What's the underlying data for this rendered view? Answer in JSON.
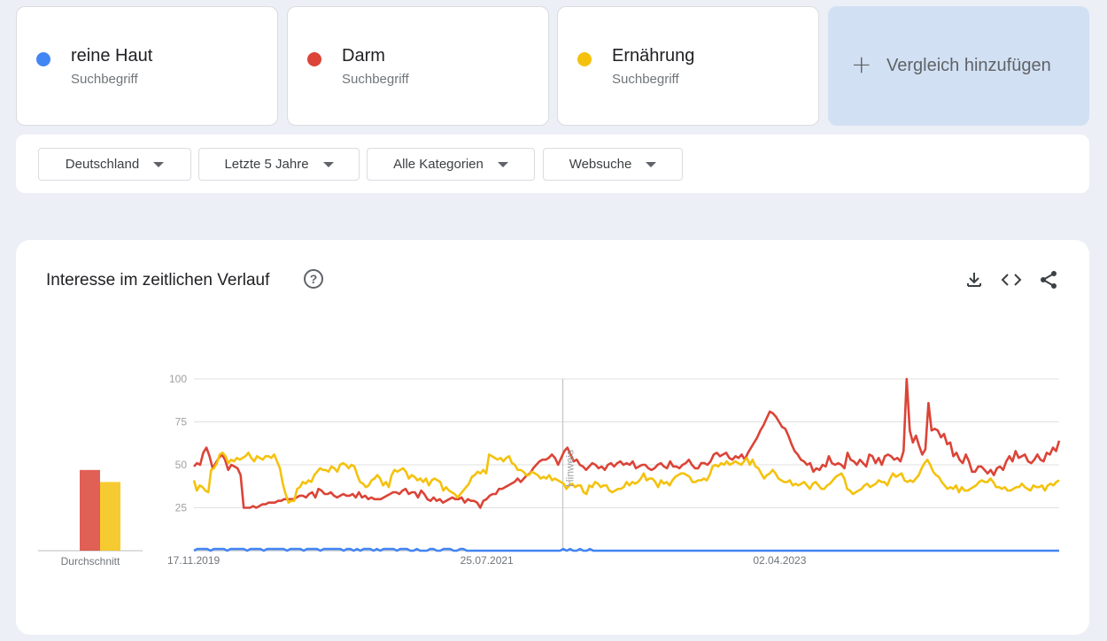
{
  "terms": [
    {
      "label": "reine Haut",
      "sublabel": "Suchbegriff",
      "color": "#4285f4"
    },
    {
      "label": "Darm",
      "sublabel": "Suchbegriff",
      "color": "#db4437"
    },
    {
      "label": "Ernährung",
      "sublabel": "Suchbegriff",
      "color": "#f4c20d"
    }
  ],
  "add_compare": {
    "icon": "plus-icon",
    "label": "Vergleich hinzufügen"
  },
  "filters": {
    "region": "Deutschland",
    "period": "Letzte 5 Jahre",
    "category": "Alle Kategorien",
    "search_type": "Websuche"
  },
  "panel": {
    "title": "Interesse im zeitlichen Verlauf",
    "icons": [
      "help-icon",
      "download-icon",
      "embed-icon",
      "share-icon"
    ]
  },
  "chart_data": {
    "type": "line",
    "y_ticks": [
      25,
      50,
      75,
      100
    ],
    "ylim": [
      0,
      100
    ],
    "x_tick_labels": [
      "17.11.2019",
      "25.07.2021",
      "02.04.2023"
    ],
    "x_range": [
      "17.11.2019",
      "10.11.2024"
    ],
    "annotation": {
      "label": "Hinweis",
      "date": "01.01.2022"
    },
    "average_label": "Durchschnitt",
    "averages": [
      {
        "name": "reine Haut",
        "value": 0
      },
      {
        "name": "Darm",
        "value": 47
      },
      {
        "name": "Ernährung",
        "value": 40
      }
    ],
    "series": [
      {
        "name": "reine Haut",
        "color": "#4285f4",
        "values": [
          0,
          1,
          1,
          1,
          1,
          0,
          1,
          1,
          1,
          1,
          0,
          1,
          1,
          1,
          1,
          1,
          0,
          1,
          1,
          1,
          1,
          0,
          1,
          1,
          1,
          1,
          1,
          1,
          0,
          1,
          1,
          1,
          1,
          0,
          1,
          1,
          1,
          1,
          0,
          1,
          1,
          1,
          1,
          1,
          1,
          0,
          1,
          1,
          0,
          1,
          0,
          1,
          1,
          1,
          0,
          1,
          0,
          1,
          1,
          1,
          1,
          0,
          1,
          1,
          1,
          0,
          0,
          1,
          0,
          0,
          0,
          1,
          1,
          0,
          0,
          1,
          1,
          1,
          0,
          0,
          1,
          1,
          0,
          0,
          0,
          0,
          0,
          0,
          0,
          0,
          0,
          0,
          0,
          0,
          0,
          0,
          0,
          0,
          0,
          0,
          0,
          0,
          0,
          0,
          0,
          0,
          0,
          0,
          0,
          0,
          0,
          1,
          0,
          1,
          0,
          0,
          1,
          0,
          0,
          1,
          0,
          0,
          0,
          0,
          0,
          0,
          0,
          0,
          0,
          0,
          0,
          0,
          0,
          0,
          0,
          0,
          0,
          0,
          0,
          0,
          0,
          0,
          0,
          0,
          0,
          0,
          0,
          0,
          0,
          0,
          0,
          0,
          0,
          0,
          0,
          0,
          0,
          0,
          0,
          0,
          0,
          0,
          0,
          0,
          0,
          0,
          0,
          0,
          0,
          0,
          0,
          0,
          0,
          0,
          0,
          0,
          0,
          0,
          0,
          0,
          0,
          0,
          0,
          0,
          0,
          0,
          0,
          0,
          0,
          0,
          0,
          0,
          0,
          0,
          0,
          0,
          0,
          0,
          0,
          0,
          0,
          0,
          0,
          0,
          0,
          0,
          0,
          0,
          0,
          0,
          0,
          0,
          0,
          0,
          0,
          0,
          0,
          0,
          0,
          0,
          0,
          0,
          0,
          0,
          0,
          0,
          0,
          0,
          0,
          0,
          0,
          0,
          0,
          0,
          0,
          0,
          0,
          0,
          0,
          0,
          0,
          0,
          0,
          0,
          0,
          0,
          0,
          0,
          0,
          0,
          0,
          0,
          0,
          0,
          0,
          0,
          0,
          0,
          0,
          0,
          0
        ]
      },
      {
        "name": "Darm",
        "color": "#db4437",
        "values": [
          49,
          51,
          50,
          57,
          60,
          55,
          48,
          51,
          54,
          56,
          53,
          47,
          50,
          49,
          48,
          44,
          25,
          25,
          25,
          26,
          25,
          26,
          27,
          27,
          28,
          28,
          28,
          29,
          29,
          30,
          30,
          30,
          30,
          31,
          32,
          32,
          31,
          33,
          34,
          31,
          36,
          35,
          33,
          33,
          34,
          32,
          31,
          32,
          33,
          32,
          32,
          33,
          31,
          34,
          31,
          32,
          30,
          31,
          30,
          30,
          30,
          31,
          32,
          33,
          34,
          34,
          33,
          35,
          36,
          33,
          34,
          34,
          31,
          35,
          33,
          30,
          29,
          31,
          29,
          30,
          28,
          29,
          30,
          31,
          30,
          30,
          31,
          28,
          30,
          29,
          29,
          28,
          25,
          29,
          30,
          32,
          33,
          33,
          36,
          36,
          37,
          38,
          39,
          40,
          42,
          40,
          42,
          44,
          45,
          48,
          50,
          52,
          53,
          53,
          54,
          56,
          54,
          50,
          54,
          58,
          60,
          56,
          52,
          53,
          50,
          49,
          47,
          49,
          51,
          50,
          48,
          49,
          47,
          50,
          51,
          49,
          51,
          52,
          50,
          51,
          50,
          52,
          48,
          49,
          50,
          50,
          48,
          47,
          48,
          50,
          51,
          49,
          48,
          52,
          49,
          49,
          48,
          50,
          51,
          53,
          50,
          48,
          48,
          51,
          51,
          50,
          52,
          56,
          57,
          55,
          56,
          57,
          54,
          53,
          55,
          54,
          56,
          53,
          57,
          60,
          63,
          66,
          70,
          73,
          77,
          81,
          80,
          78,
          75,
          72,
          71,
          67,
          62,
          58,
          56,
          53,
          52,
          50,
          51,
          46,
          48,
          47,
          50,
          49,
          55,
          51,
          50,
          51,
          50,
          48,
          57,
          53,
          52,
          50,
          53,
          51,
          49,
          56,
          55,
          51,
          54,
          50,
          55,
          56,
          55,
          53,
          54,
          52,
          58,
          100,
          70,
          63,
          67,
          61,
          56,
          59,
          86,
          70,
          71,
          70,
          66,
          68,
          62,
          63,
          55,
          57,
          53,
          51,
          56,
          52,
          46,
          46,
          49,
          49,
          47,
          45,
          47,
          44,
          48,
          49,
          47,
          52,
          55,
          52,
          58,
          54,
          55,
          56,
          52,
          51,
          53,
          56,
          53,
          52,
          57,
          56,
          60,
          58,
          64
        ]
      },
      {
        "name": "Ernährung",
        "color": "#f4c20d",
        "values": [
          41,
          35,
          38,
          37,
          35,
          34,
          47,
          48,
          51,
          56,
          57,
          55,
          51,
          53,
          52,
          54,
          53,
          54,
          55,
          57,
          54,
          52,
          55,
          54,
          53,
          55,
          55,
          54,
          56,
          52,
          48,
          39,
          33,
          28,
          29,
          29,
          36,
          37,
          40,
          39,
          41,
          40,
          44,
          46,
          48,
          47,
          47,
          46,
          49,
          48,
          46,
          50,
          51,
          50,
          48,
          50,
          49,
          44,
          40,
          39,
          37,
          38,
          41,
          42,
          44,
          42,
          38,
          40,
          37,
          44,
          47,
          46,
          47,
          48,
          46,
          42,
          44,
          43,
          41,
          42,
          40,
          42,
          38,
          41,
          42,
          41,
          40,
          35,
          37,
          35,
          34,
          33,
          31,
          33,
          35,
          37,
          39,
          43,
          44,
          46,
          45,
          47,
          45,
          56,
          55,
          54,
          53,
          54,
          52,
          54,
          55,
          51,
          50,
          47,
          47,
          46,
          44,
          44,
          46,
          45,
          44,
          42,
          43,
          42,
          44,
          41,
          42,
          41,
          40,
          39,
          36,
          38,
          39,
          37,
          38,
          38,
          34,
          33,
          38,
          37,
          40,
          39,
          37,
          38,
          38,
          35,
          34,
          35,
          36,
          36,
          37,
          40,
          38,
          40,
          39,
          40,
          42,
          45,
          41,
          42,
          42,
          40,
          37,
          41,
          39,
          40,
          38,
          41,
          43,
          44,
          45,
          45,
          44,
          43,
          40,
          40,
          41,
          41,
          42,
          41,
          44,
          49,
          50,
          49,
          51,
          50,
          52,
          50,
          51,
          52,
          51,
          50,
          52,
          54,
          50,
          53,
          49,
          48,
          45,
          42,
          44,
          45,
          47,
          45,
          42,
          41,
          40,
          40,
          41,
          38,
          39,
          38,
          39,
          40,
          38,
          36,
          39,
          40,
          38,
          36,
          36,
          38,
          39,
          41,
          43,
          44,
          45,
          42,
          36,
          35,
          33,
          34,
          35,
          36,
          38,
          39,
          37,
          38,
          39,
          41,
          40,
          40,
          38,
          42,
          45,
          43,
          44,
          45,
          41,
          40,
          41,
          40,
          42,
          44,
          48,
          51,
          53,
          50,
          46,
          44,
          43,
          40,
          38,
          36,
          37,
          36,
          38,
          34,
          37,
          35,
          35,
          36,
          37,
          38,
          40,
          41,
          40,
          40,
          42,
          40,
          37,
          37,
          36,
          37,
          35,
          35,
          36,
          37,
          37,
          39,
          37,
          36,
          35,
          38,
          37,
          37,
          38,
          35,
          38,
          39,
          38,
          40,
          41
        ]
      }
    ]
  }
}
